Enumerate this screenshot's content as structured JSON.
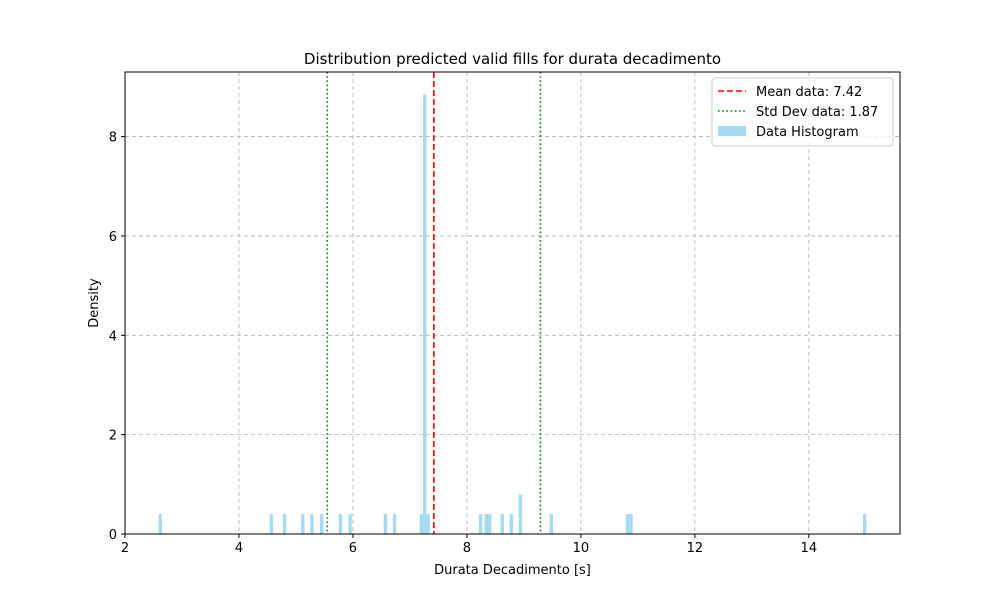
{
  "chart_data": {
    "type": "bar",
    "title": "Distribution predicted valid fills for durata decadimento",
    "xlabel": "Durata Decadimento [s]",
    "ylabel": "Density",
    "xlim": [
      2.0,
      15.6
    ],
    "ylim": [
      0,
      9.3
    ],
    "xticks": [
      2,
      4,
      6,
      8,
      10,
      12,
      14
    ],
    "yticks": [
      0,
      2,
      4,
      6,
      8
    ],
    "grid": true,
    "legend_position": "top-right",
    "bin_width": 0.06,
    "histogram": {
      "name": "Data Histogram",
      "color": "#87CEEB",
      "bins": [
        {
          "x": 2.62,
          "density": 0.4
        },
        {
          "x": 4.57,
          "density": 0.4
        },
        {
          "x": 4.8,
          "density": 0.4
        },
        {
          "x": 5.12,
          "density": 0.4
        },
        {
          "x": 5.28,
          "density": 0.4
        },
        {
          "x": 5.45,
          "density": 0.4
        },
        {
          "x": 5.78,
          "density": 0.4
        },
        {
          "x": 5.95,
          "density": 0.4
        },
        {
          "x": 6.57,
          "density": 0.4
        },
        {
          "x": 6.73,
          "density": 0.4
        },
        {
          "x": 7.2,
          "density": 0.4
        },
        {
          "x": 7.26,
          "density": 8.85
        },
        {
          "x": 7.32,
          "density": 0.4
        },
        {
          "x": 8.24,
          "density": 0.4
        },
        {
          "x": 8.34,
          "density": 0.4
        },
        {
          "x": 8.4,
          "density": 0.4
        },
        {
          "x": 8.62,
          "density": 0.4
        },
        {
          "x": 8.78,
          "density": 0.4
        },
        {
          "x": 8.94,
          "density": 0.8
        },
        {
          "x": 9.48,
          "density": 0.4
        },
        {
          "x": 10.82,
          "density": 0.4
        },
        {
          "x": 10.88,
          "density": 0.4
        },
        {
          "x": 14.98,
          "density": 0.4
        }
      ]
    },
    "mean_line": {
      "name": "Mean data: 7.42",
      "x": 7.42,
      "color": "#ff0000",
      "style": "dashed"
    },
    "std_lines": {
      "name": "Std Dev data: 1.87",
      "x": [
        5.55,
        9.29
      ],
      "color": "#008000",
      "style": "dotted"
    }
  }
}
